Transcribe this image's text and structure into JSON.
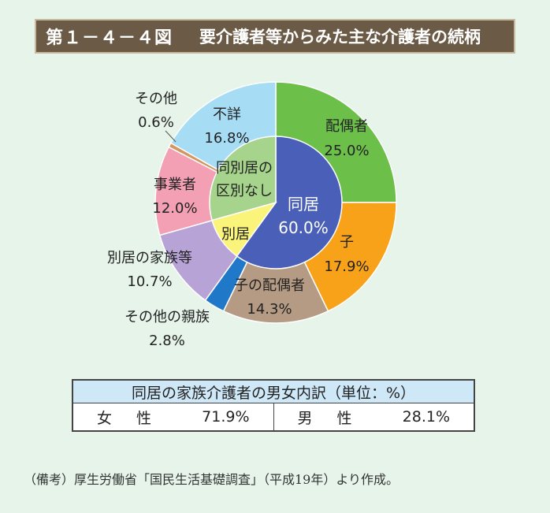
{
  "figure": {
    "number": "第１－４－４図",
    "title": "要介護者等からみた主な介護者の続柄"
  },
  "chart_data": [
    {
      "type": "pie",
      "ring": "outer",
      "slices": [
        {
          "label": "配偶者",
          "value": 25.0,
          "display": "25.0%",
          "color": "#6cc04a"
        },
        {
          "label": "子",
          "value": 17.9,
          "display": "17.9%",
          "color": "#f8a21a"
        },
        {
          "label": "子の配偶者",
          "value": 14.3,
          "display": "14.3%",
          "color": "#b59b84"
        },
        {
          "label": "その他の親族",
          "value": 2.8,
          "display": "2.8%",
          "color": "#1f78c8"
        },
        {
          "label": "別居の家族等",
          "value": 10.7,
          "display": "10.7%",
          "color": "#b7a3d6"
        },
        {
          "label": "事業者",
          "value": 12.0,
          "display": "12.0%",
          "color": "#f4a0b4"
        },
        {
          "label": "その他",
          "value": 0.6,
          "display": "0.6%",
          "color": "#d29760"
        },
        {
          "label": "不詳",
          "value": 16.8,
          "display": "16.8%",
          "color": "#a6dcf4"
        }
      ]
    },
    {
      "type": "pie",
      "ring": "inner",
      "slices": [
        {
          "label": "同居",
          "value": 60.0,
          "display": "60.0%",
          "color": "#4a5fb8"
        },
        {
          "label": "別居",
          "value": 10.7,
          "color": "#fbf47a"
        },
        {
          "label": "同別居の区別なし",
          "value": 29.3,
          "color": "#a6d48c"
        }
      ]
    },
    {
      "type": "table",
      "title": "同居の家族介護者の男女内訳（単位：%）",
      "rows": [
        {
          "label": "女　性",
          "value": 71.9,
          "display": "71.9%"
        },
        {
          "label": "男　性",
          "value": 28.1,
          "display": "28.1%"
        }
      ]
    }
  ],
  "breakdown": {
    "header": "同居の家族介護者の男女内訳（単位：%）",
    "female_label": "女　性",
    "female_value": "71.9%",
    "male_label": "男　性",
    "male_value": "28.1%"
  },
  "source": "（備考）厚生労働省「国民生活基礎調査」（平成19年）より作成。"
}
